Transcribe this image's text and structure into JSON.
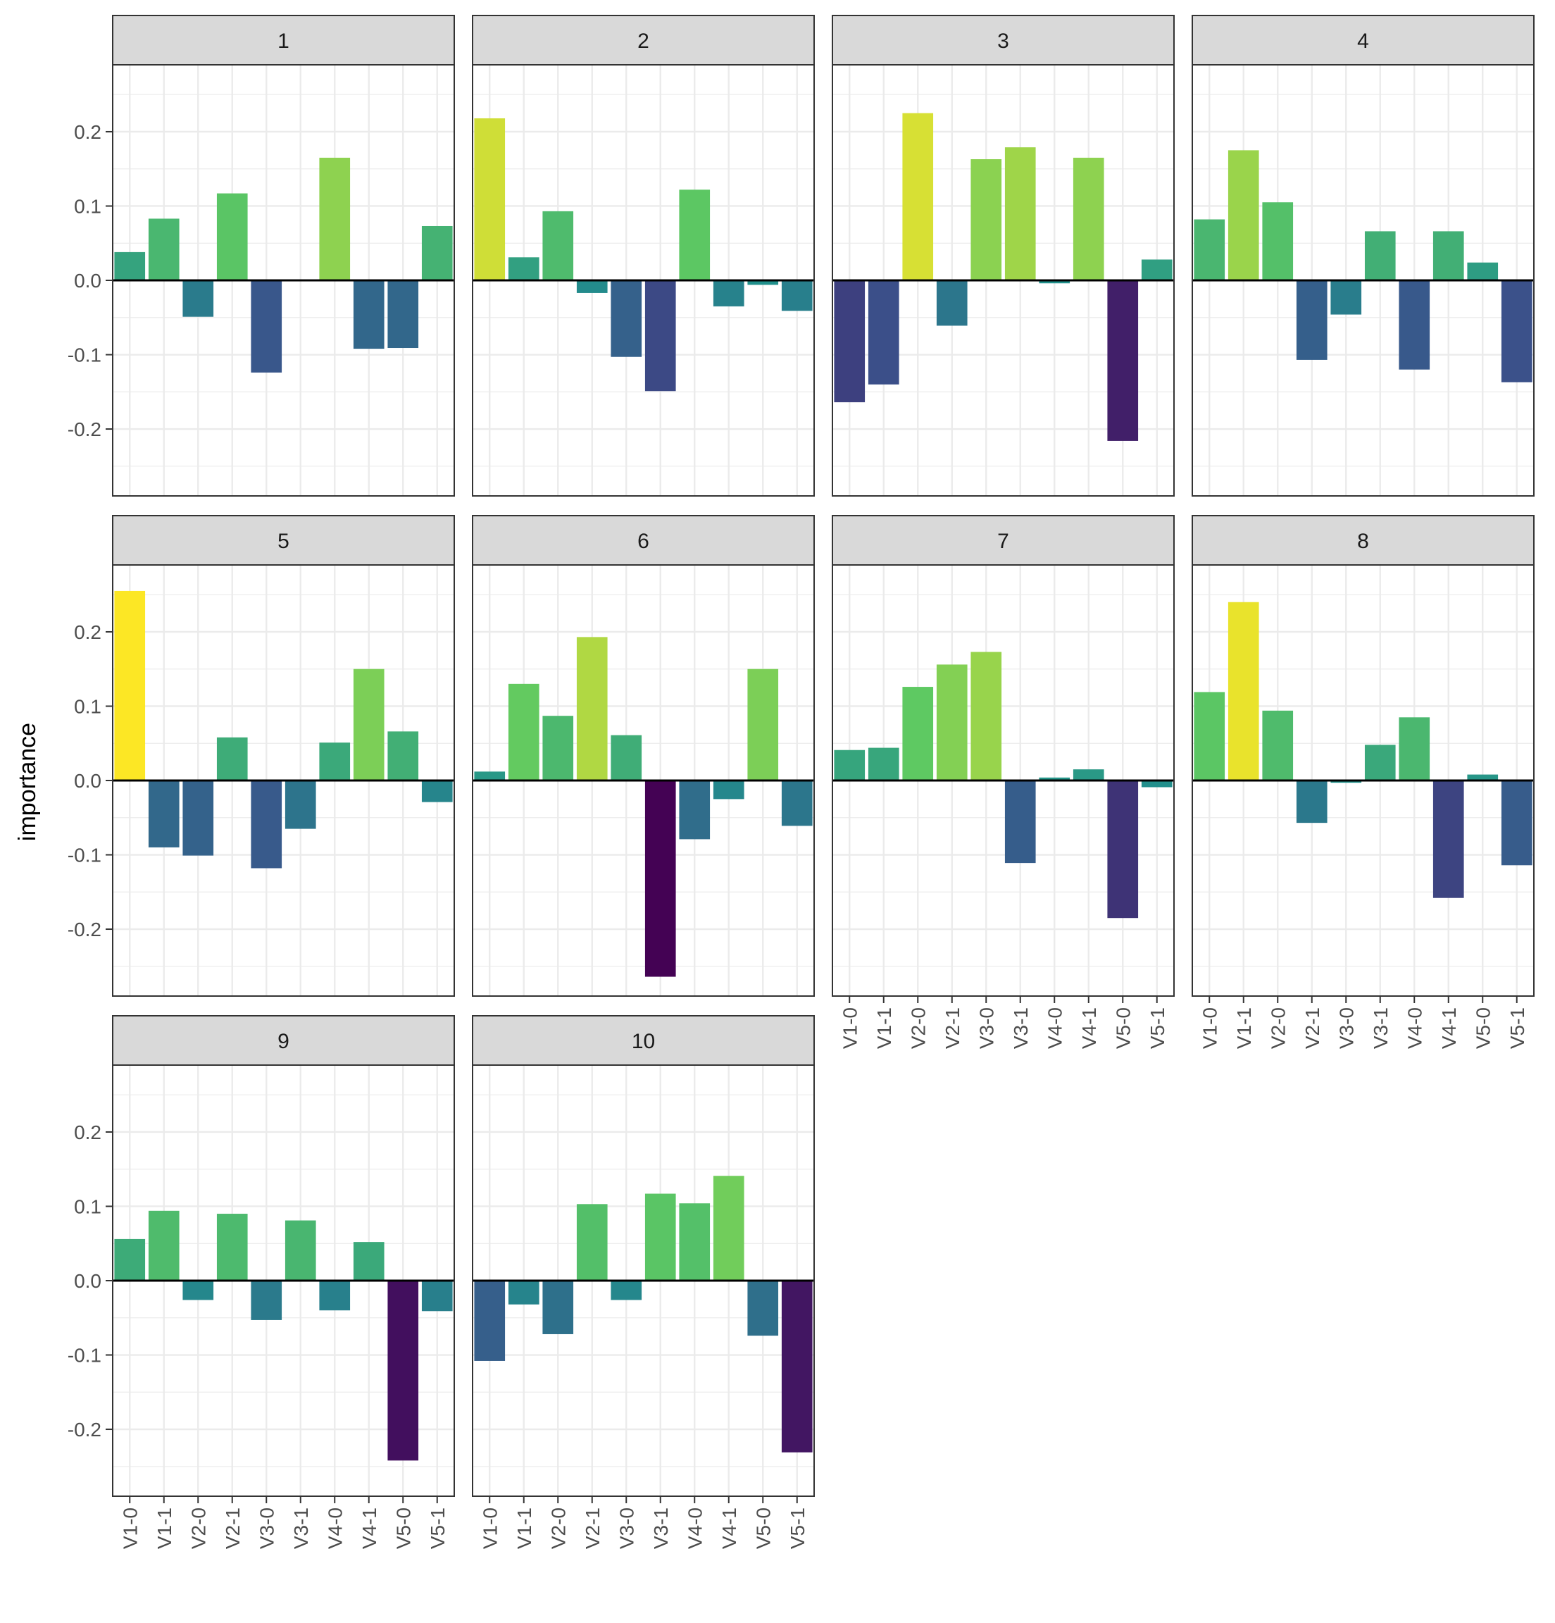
{
  "chart_data": {
    "type": "bar",
    "layout": "faceted small multiples, 4 columns x 3 rows",
    "ylabel": "importance",
    "xlabel": "",
    "ylim": [
      -0.29,
      0.29
    ],
    "y_ticks": [
      0.2,
      0.1,
      0.0,
      -0.1,
      -0.2
    ],
    "y_tick_labels": [
      "0.2",
      "0.1",
      "0.0",
      "-0.1",
      "-0.2"
    ],
    "grid": true,
    "zero_line": true,
    "color_scale": "viridis (bar fill mapped to importance)",
    "categories": [
      "V1-0",
      "V1-1",
      "V2-0",
      "V2-1",
      "V3-0",
      "V3-1",
      "V4-0",
      "V4-1",
      "V5-0",
      "V5-1"
    ],
    "panels": [
      {
        "label": "1",
        "values": [
          0.038,
          0.083,
          -0.049,
          0.117,
          -0.124,
          0.0,
          0.165,
          -0.092,
          -0.091,
          0.073
        ]
      },
      {
        "label": "2",
        "values": [
          0.218,
          0.031,
          0.093,
          -0.017,
          -0.103,
          -0.149,
          0.122,
          -0.035,
          -0.006,
          -0.041
        ]
      },
      {
        "label": "3",
        "values": [
          -0.164,
          -0.14,
          0.225,
          -0.061,
          0.163,
          0.179,
          -0.004,
          0.165,
          -0.216,
          0.028
        ]
      },
      {
        "label": "4",
        "values": [
          0.082,
          0.175,
          0.105,
          -0.107,
          -0.046,
          0.066,
          -0.12,
          0.066,
          0.024,
          -0.137
        ]
      },
      {
        "label": "5",
        "values": [
          0.255,
          -0.09,
          -0.101,
          0.058,
          -0.118,
          -0.065,
          0.051,
          0.15,
          0.066,
          -0.029
        ]
      },
      {
        "label": "6",
        "values": [
          0.012,
          0.13,
          0.087,
          0.193,
          0.061,
          -0.264,
          -0.079,
          -0.025,
          0.15,
          -0.061
        ]
      },
      {
        "label": "7",
        "values": [
          0.041,
          0.044,
          0.126,
          0.156,
          0.173,
          -0.111,
          0.004,
          0.015,
          -0.185,
          -0.009
        ]
      },
      {
        "label": "8",
        "values": [
          0.119,
          0.24,
          0.094,
          -0.057,
          -0.003,
          0.048,
          0.085,
          -0.158,
          0.008,
          -0.114
        ]
      },
      {
        "label": "9",
        "values": [
          0.056,
          0.094,
          -0.026,
          0.09,
          -0.053,
          0.081,
          -0.04,
          0.052,
          -0.242,
          -0.041
        ]
      },
      {
        "label": "10",
        "values": [
          -0.108,
          -0.032,
          -0.072,
          0.103,
          -0.026,
          0.117,
          0.104,
          0.141,
          -0.074,
          -0.231
        ]
      }
    ]
  }
}
